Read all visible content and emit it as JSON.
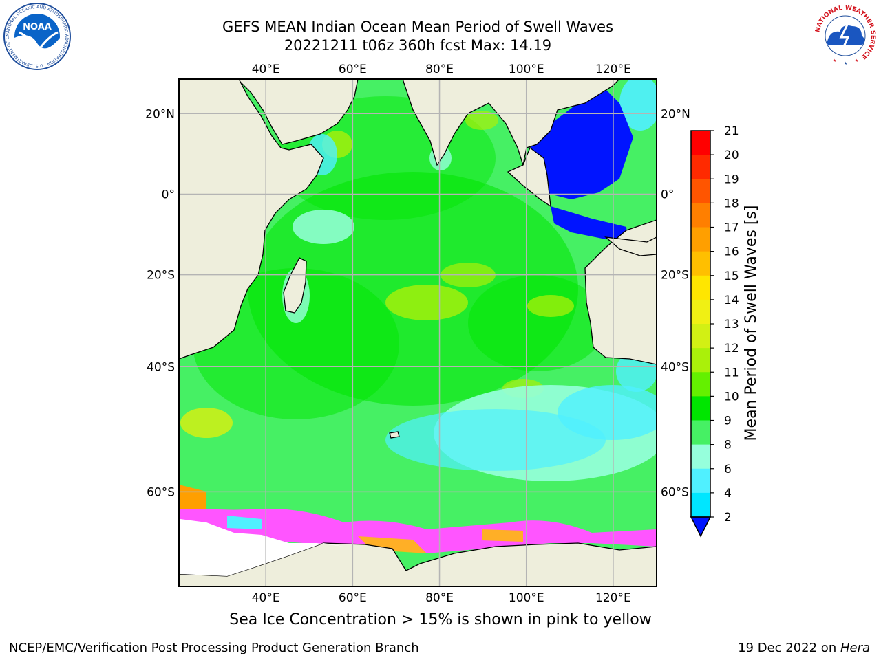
{
  "title": {
    "line1": "GEFS MEAN Indian Ocean Mean Period of Swell Waves",
    "line2": "20221211 t06z 360h fcst   Max: 14.19"
  },
  "map": {
    "lon_ticks": [
      "40°E",
      "60°E",
      "80°E",
      "100°E",
      "120°E"
    ],
    "lat_ticks": [
      "20°N",
      "0°",
      "20°S",
      "40°S",
      "60°S"
    ],
    "lon_values": [
      40,
      60,
      80,
      100,
      120
    ],
    "lat_values": [
      20,
      0,
      -20,
      -40,
      -60
    ],
    "extent": {
      "lon_min": 20,
      "lon_max": 130,
      "lat_min": -70,
      "lat_max": 28
    },
    "grid": true,
    "land_color": "#eeeedc",
    "ice_note_color": "#ff55ff"
  },
  "colorbar": {
    "label": "Mean Period of Swell Waves [s]",
    "ticks": [
      "21",
      "20",
      "19",
      "18",
      "17",
      "16",
      "15",
      "14",
      "13",
      "12",
      "11",
      "10",
      "9",
      "8",
      "6",
      "4",
      "2"
    ],
    "colors": [
      "#ff0000",
      "#ff2a00",
      "#ff5500",
      "#ff7f00",
      "#ff9f00",
      "#ffbf00",
      "#ffe600",
      "#f0f014",
      "#d2f014",
      "#aaf00a",
      "#64f000",
      "#00e600",
      "#46f064",
      "#96ffdc",
      "#50f0ff",
      "#00e6ff",
      "#0096ff",
      "#0014ff"
    ],
    "extend": "min"
  },
  "caption": "Sea Ice Concentration > 15% is shown in pink to yellow",
  "footer": {
    "left": "NCEP/EMC/Verification Post Processing Product Generation Branch",
    "right_prefix": "19 Dec 2022 on ",
    "right_host": "Hera"
  },
  "logos": {
    "noaa": "NOAA",
    "noaa_ring": "NATIONAL OCEANIC AND ATMOSPHERIC ADMINISTRATION · U.S. DEPARTMENT OF COMMERCE",
    "nws_ring": "NATIONAL WEATHER SERVICE"
  }
}
